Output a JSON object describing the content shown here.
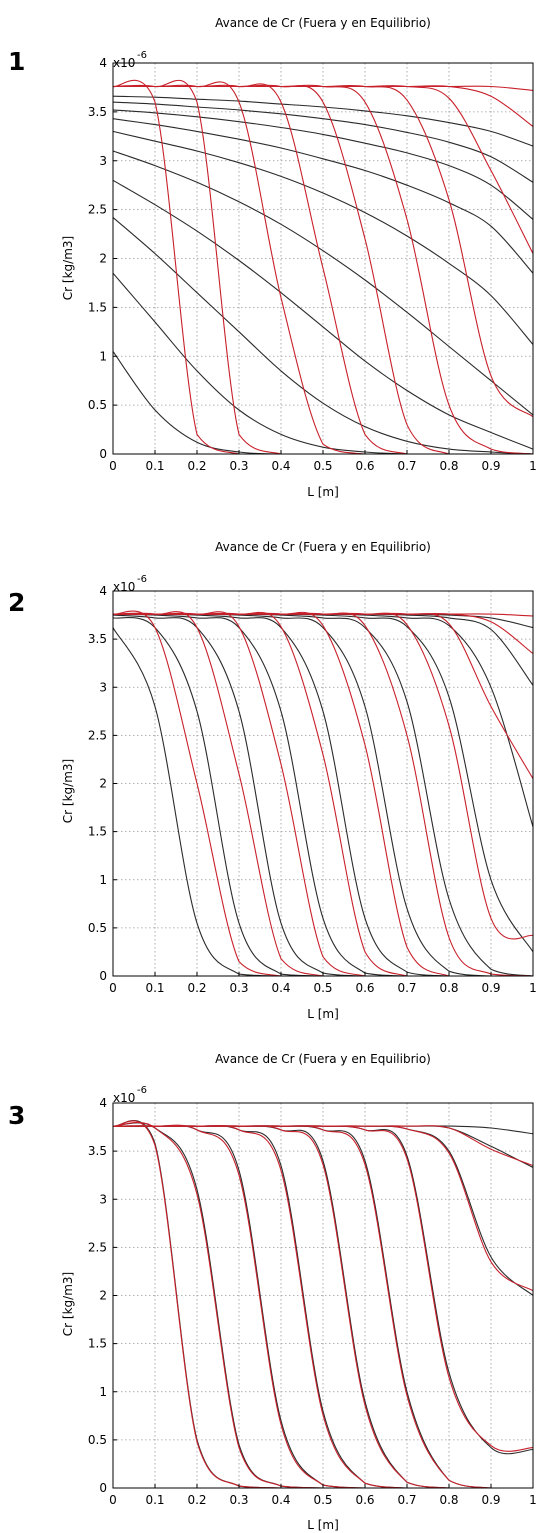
{
  "chart_data": [
    {
      "panel_label": "1",
      "type": "line",
      "title": "Avance de Cr (Fuera y en Equilibrio)",
      "xlabel": "L [m]",
      "ylabel": "Cr [kg/m3]",
      "y_multiplier": "x10",
      "y_exponent": "-6",
      "xlim": [
        0,
        1
      ],
      "ylim": [
        0,
        4
      ],
      "x_ticks": [
        "0",
        "0.1",
        "0.2",
        "0.3",
        "0.4",
        "0.5",
        "0.6",
        "0.7",
        "0.8",
        "0.9",
        "1"
      ],
      "y_ticks": [
        "0",
        "0.5",
        "1",
        "1.5",
        "2",
        "2.5",
        "3",
        "3.5",
        "4"
      ],
      "grid": true,
      "colors": {
        "black_series": "#2b2b2b",
        "red_series": "#c8202a"
      },
      "x": [
        0,
        0.1,
        0.2,
        0.3,
        0.4,
        0.5,
        0.6,
        0.7,
        0.8,
        0.9,
        1.0
      ],
      "series": [
        {
          "color": "black",
          "values": [
            1.05,
            0.45,
            0.12,
            0.02,
            0.0,
            0.0,
            0.0,
            0.0,
            0.0,
            0.0,
            0.0
          ]
        },
        {
          "color": "black",
          "values": [
            1.85,
            1.35,
            0.85,
            0.45,
            0.2,
            0.07,
            0.02,
            0.0,
            0.0,
            0.0,
            0.0
          ]
        },
        {
          "color": "black",
          "values": [
            2.42,
            2.05,
            1.65,
            1.25,
            0.85,
            0.52,
            0.28,
            0.13,
            0.05,
            0.02,
            0.0
          ]
        },
        {
          "color": "black",
          "values": [
            2.8,
            2.55,
            2.28,
            1.98,
            1.65,
            1.3,
            0.95,
            0.65,
            0.4,
            0.22,
            0.05
          ]
        },
        {
          "color": "black",
          "values": [
            3.1,
            2.95,
            2.78,
            2.58,
            2.35,
            2.08,
            1.78,
            1.45,
            1.1,
            0.75,
            0.4
          ]
        },
        {
          "color": "black",
          "values": [
            3.3,
            3.2,
            3.1,
            2.98,
            2.84,
            2.67,
            2.47,
            2.23,
            1.95,
            1.62,
            1.12
          ]
        },
        {
          "color": "black",
          "values": [
            3.43,
            3.37,
            3.3,
            3.22,
            3.13,
            3.02,
            2.9,
            2.75,
            2.57,
            2.33,
            1.85
          ]
        },
        {
          "color": "black",
          "values": [
            3.52,
            3.49,
            3.45,
            3.4,
            3.34,
            3.27,
            3.18,
            3.08,
            2.95,
            2.75,
            2.4
          ]
        },
        {
          "color": "black",
          "values": [
            3.6,
            3.58,
            3.55,
            3.52,
            3.48,
            3.43,
            3.37,
            3.29,
            3.19,
            3.04,
            2.78
          ]
        },
        {
          "color": "black",
          "values": [
            3.66,
            3.65,
            3.63,
            3.61,
            3.58,
            3.55,
            3.51,
            3.46,
            3.39,
            3.3,
            3.15
          ]
        },
        {
          "color": "red",
          "values": [
            3.76,
            3.6,
            0.2,
            0.0,
            0.0,
            0.0,
            0.0,
            0.0,
            0.0,
            0.0,
            0.0
          ]
        },
        {
          "color": "red",
          "values": [
            3.76,
            3.76,
            3.6,
            0.2,
            0.0,
            0.0,
            0.0,
            0.0,
            0.0,
            0.0,
            0.0
          ]
        },
        {
          "color": "red",
          "values": [
            3.76,
            3.76,
            3.76,
            3.6,
            1.6,
            0.1,
            0.0,
            0.0,
            0.0,
            0.0,
            0.0
          ]
        },
        {
          "color": "red",
          "values": [
            3.76,
            3.76,
            3.76,
            3.76,
            3.6,
            1.9,
            0.2,
            0.0,
            0.0,
            0.0,
            0.0
          ]
        },
        {
          "color": "red",
          "values": [
            3.76,
            3.76,
            3.76,
            3.76,
            3.76,
            3.6,
            2.2,
            0.3,
            0.0,
            0.0,
            0.0
          ]
        },
        {
          "color": "red",
          "values": [
            3.76,
            3.76,
            3.76,
            3.76,
            3.76,
            3.76,
            3.6,
            2.4,
            0.5,
            0.05,
            0.0
          ]
        },
        {
          "color": "red",
          "values": [
            3.76,
            3.76,
            3.76,
            3.76,
            3.76,
            3.76,
            3.76,
            3.62,
            2.6,
            0.8,
            0.38
          ]
        },
        {
          "color": "red",
          "values": [
            3.76,
            3.76,
            3.76,
            3.76,
            3.76,
            3.76,
            3.76,
            3.76,
            3.64,
            2.9,
            2.05
          ]
        },
        {
          "color": "red",
          "values": [
            3.76,
            3.76,
            3.76,
            3.76,
            3.76,
            3.76,
            3.76,
            3.76,
            3.76,
            3.66,
            3.35
          ]
        },
        {
          "color": "red",
          "values": [
            3.76,
            3.76,
            3.76,
            3.76,
            3.76,
            3.76,
            3.76,
            3.76,
            3.76,
            3.76,
            3.72
          ]
        }
      ]
    },
    {
      "panel_label": "2",
      "type": "line",
      "title": "Avance de Cr (Fuera y en Equilibrio)",
      "xlabel": "L [m]",
      "ylabel": "Cr [kg/m3]",
      "y_multiplier": "x10",
      "y_exponent": "-6",
      "xlim": [
        0,
        1
      ],
      "ylim": [
        0,
        4
      ],
      "x_ticks": [
        "0",
        "0.1",
        "0.2",
        "0.3",
        "0.4",
        "0.5",
        "0.6",
        "0.7",
        "0.8",
        "0.9",
        "1"
      ],
      "y_ticks": [
        "0",
        "0.5",
        "1",
        "1.5",
        "2",
        "2.5",
        "3",
        "3.5",
        "4"
      ],
      "grid": true,
      "colors": {
        "black_series": "#2b2b2b",
        "red_series": "#c8202a"
      },
      "x": [
        0,
        0.1,
        0.2,
        0.3,
        0.4,
        0.5,
        0.6,
        0.7,
        0.8,
        0.9,
        1.0
      ],
      "series": [
        {
          "color": "black",
          "values": [
            3.62,
            2.8,
            0.55,
            0.02,
            0.0,
            0.0,
            0.0,
            0.0,
            0.0,
            0.0,
            0.0
          ]
        },
        {
          "color": "black",
          "values": [
            3.72,
            3.62,
            2.75,
            0.55,
            0.02,
            0.0,
            0.0,
            0.0,
            0.0,
            0.0,
            0.0
          ]
        },
        {
          "color": "black",
          "values": [
            3.75,
            3.72,
            3.62,
            2.75,
            0.55,
            0.03,
            0.0,
            0.0,
            0.0,
            0.0,
            0.0
          ]
        },
        {
          "color": "black",
          "values": [
            3.76,
            3.75,
            3.72,
            3.62,
            2.75,
            0.6,
            0.03,
            0.0,
            0.0,
            0.0,
            0.0
          ]
        },
        {
          "color": "black",
          "values": [
            3.76,
            3.76,
            3.75,
            3.72,
            3.62,
            2.75,
            0.6,
            0.04,
            0.0,
            0.0,
            0.0
          ]
        },
        {
          "color": "black",
          "values": [
            3.76,
            3.76,
            3.76,
            3.75,
            3.72,
            3.62,
            2.8,
            0.7,
            0.05,
            0.0,
            0.0
          ]
        },
        {
          "color": "black",
          "values": [
            3.76,
            3.76,
            3.76,
            3.76,
            3.75,
            3.72,
            3.62,
            2.85,
            0.8,
            0.07,
            0.0
          ]
        },
        {
          "color": "black",
          "values": [
            3.76,
            3.76,
            3.76,
            3.76,
            3.76,
            3.75,
            3.72,
            3.63,
            2.9,
            1.0,
            0.25
          ]
        },
        {
          "color": "black",
          "values": [
            3.76,
            3.76,
            3.76,
            3.76,
            3.76,
            3.76,
            3.75,
            3.72,
            3.64,
            3.0,
            1.55
          ]
        },
        {
          "color": "black",
          "values": [
            3.76,
            3.76,
            3.76,
            3.76,
            3.76,
            3.76,
            3.76,
            3.75,
            3.72,
            3.6,
            3.02
          ]
        },
        {
          "color": "black",
          "values": [
            3.76,
            3.76,
            3.76,
            3.76,
            3.76,
            3.76,
            3.76,
            3.76,
            3.75,
            3.72,
            3.62
          ]
        },
        {
          "color": "red",
          "values": [
            3.76,
            3.62,
            2.0,
            0.15,
            0.0,
            0.0,
            0.0,
            0.0,
            0.0,
            0.0,
            0.0
          ]
        },
        {
          "color": "red",
          "values": [
            3.76,
            3.76,
            3.62,
            2.1,
            0.18,
            0.0,
            0.0,
            0.0,
            0.0,
            0.0,
            0.0
          ]
        },
        {
          "color": "red",
          "values": [
            3.76,
            3.76,
            3.76,
            3.63,
            2.2,
            0.2,
            0.0,
            0.0,
            0.0,
            0.0,
            0.0
          ]
        },
        {
          "color": "red",
          "values": [
            3.76,
            3.76,
            3.76,
            3.76,
            3.63,
            2.3,
            0.25,
            0.0,
            0.0,
            0.0,
            0.0
          ]
        },
        {
          "color": "red",
          "values": [
            3.76,
            3.76,
            3.76,
            3.76,
            3.76,
            3.64,
            2.4,
            0.3,
            0.0,
            0.0,
            0.0
          ]
        },
        {
          "color": "red",
          "values": [
            3.76,
            3.76,
            3.76,
            3.76,
            3.76,
            3.76,
            3.64,
            2.5,
            0.4,
            0.02,
            0.0
          ]
        },
        {
          "color": "red",
          "values": [
            3.76,
            3.76,
            3.76,
            3.76,
            3.76,
            3.76,
            3.76,
            3.65,
            2.6,
            0.6,
            0.42
          ]
        },
        {
          "color": "red",
          "values": [
            3.76,
            3.76,
            3.76,
            3.76,
            3.76,
            3.76,
            3.76,
            3.76,
            3.66,
            2.8,
            2.05
          ]
        },
        {
          "color": "red",
          "values": [
            3.76,
            3.76,
            3.76,
            3.76,
            3.76,
            3.76,
            3.76,
            3.76,
            3.76,
            3.68,
            3.35
          ]
        },
        {
          "color": "red",
          "values": [
            3.76,
            3.76,
            3.76,
            3.76,
            3.76,
            3.76,
            3.76,
            3.76,
            3.76,
            3.76,
            3.74
          ]
        }
      ]
    },
    {
      "panel_label": "3",
      "type": "line",
      "title": "Avance de Cr (Fuera y en Equilibrio)",
      "xlabel": "L [m]",
      "ylabel": "Cr [kg/m3]",
      "y_multiplier": "x10",
      "y_exponent": "-6",
      "xlim": [
        0,
        1
      ],
      "ylim": [
        0,
        4
      ],
      "x_ticks": [
        "0",
        "0.1",
        "0.2",
        "0.3",
        "0.4",
        "0.5",
        "0.6",
        "0.7",
        "0.8",
        "0.9",
        "1"
      ],
      "y_ticks": [
        "0",
        "0.5",
        "1",
        "1.5",
        "2",
        "2.5",
        "3",
        "3.5",
        "4"
      ],
      "grid": true,
      "colors": {
        "black_series": "#2b2b2b",
        "red_series": "#c8202a"
      },
      "x": [
        0,
        0.1,
        0.2,
        0.3,
        0.4,
        0.5,
        0.6,
        0.7,
        0.8,
        0.9,
        1.0
      ],
      "series": [
        {
          "color": "black",
          "values": [
            3.76,
            3.58,
            0.5,
            0.02,
            0.0,
            0.0,
            0.0,
            0.0,
            0.0,
            0.0,
            0.0
          ]
        },
        {
          "color": "black",
          "values": [
            3.76,
            3.74,
            3.1,
            0.45,
            0.02,
            0.0,
            0.0,
            0.0,
            0.0,
            0.0,
            0.0
          ]
        },
        {
          "color": "black",
          "values": [
            3.76,
            3.76,
            3.72,
            3.3,
            0.7,
            0.03,
            0.0,
            0.0,
            0.0,
            0.0,
            0.0
          ]
        },
        {
          "color": "black",
          "values": [
            3.76,
            3.76,
            3.76,
            3.72,
            3.35,
            0.8,
            0.05,
            0.0,
            0.0,
            0.0,
            0.0
          ]
        },
        {
          "color": "black",
          "values": [
            3.76,
            3.76,
            3.76,
            3.76,
            3.72,
            3.4,
            0.9,
            0.06,
            0.0,
            0.0,
            0.0
          ]
        },
        {
          "color": "black",
          "values": [
            3.76,
            3.76,
            3.76,
            3.76,
            3.76,
            3.72,
            3.4,
            1.0,
            0.08,
            0.0,
            0.0
          ]
        },
        {
          "color": "black",
          "values": [
            3.76,
            3.76,
            3.76,
            3.76,
            3.76,
            3.76,
            3.72,
            3.45,
            1.2,
            0.42,
            0.4
          ]
        },
        {
          "color": "black",
          "values": [
            3.76,
            3.76,
            3.76,
            3.76,
            3.76,
            3.76,
            3.76,
            3.73,
            3.5,
            2.4,
            2.0
          ]
        },
        {
          "color": "black",
          "values": [
            3.76,
            3.76,
            3.76,
            3.76,
            3.76,
            3.76,
            3.76,
            3.76,
            3.74,
            3.55,
            3.33
          ]
        },
        {
          "color": "black",
          "values": [
            3.76,
            3.76,
            3.76,
            3.76,
            3.76,
            3.76,
            3.76,
            3.76,
            3.76,
            3.74,
            3.68
          ]
        },
        {
          "color": "red",
          "values": [
            3.76,
            3.56,
            0.48,
            0.02,
            0.0,
            0.0,
            0.0,
            0.0,
            0.0,
            0.0,
            0.0
          ]
        },
        {
          "color": "red",
          "values": [
            3.76,
            3.74,
            3.05,
            0.42,
            0.02,
            0.0,
            0.0,
            0.0,
            0.0,
            0.0,
            0.0
          ]
        },
        {
          "color": "red",
          "values": [
            3.76,
            3.76,
            3.72,
            3.25,
            0.66,
            0.03,
            0.0,
            0.0,
            0.0,
            0.0,
            0.0
          ]
        },
        {
          "color": "red",
          "values": [
            3.76,
            3.76,
            3.76,
            3.72,
            3.3,
            0.76,
            0.05,
            0.0,
            0.0,
            0.0,
            0.0
          ]
        },
        {
          "color": "red",
          "values": [
            3.76,
            3.76,
            3.76,
            3.76,
            3.72,
            3.36,
            0.86,
            0.06,
            0.0,
            0.0,
            0.0
          ]
        },
        {
          "color": "red",
          "values": [
            3.76,
            3.76,
            3.76,
            3.76,
            3.76,
            3.72,
            3.36,
            0.96,
            0.08,
            0.0,
            0.0
          ]
        },
        {
          "color": "red",
          "values": [
            3.76,
            3.76,
            3.76,
            3.76,
            3.76,
            3.76,
            3.72,
            3.42,
            1.15,
            0.44,
            0.42
          ]
        },
        {
          "color": "red",
          "values": [
            3.76,
            3.76,
            3.76,
            3.76,
            3.76,
            3.76,
            3.76,
            3.73,
            3.48,
            2.35,
            2.05
          ]
        },
        {
          "color": "red",
          "values": [
            3.76,
            3.76,
            3.76,
            3.76,
            3.76,
            3.76,
            3.76,
            3.76,
            3.74,
            3.52,
            3.35
          ]
        }
      ]
    }
  ]
}
